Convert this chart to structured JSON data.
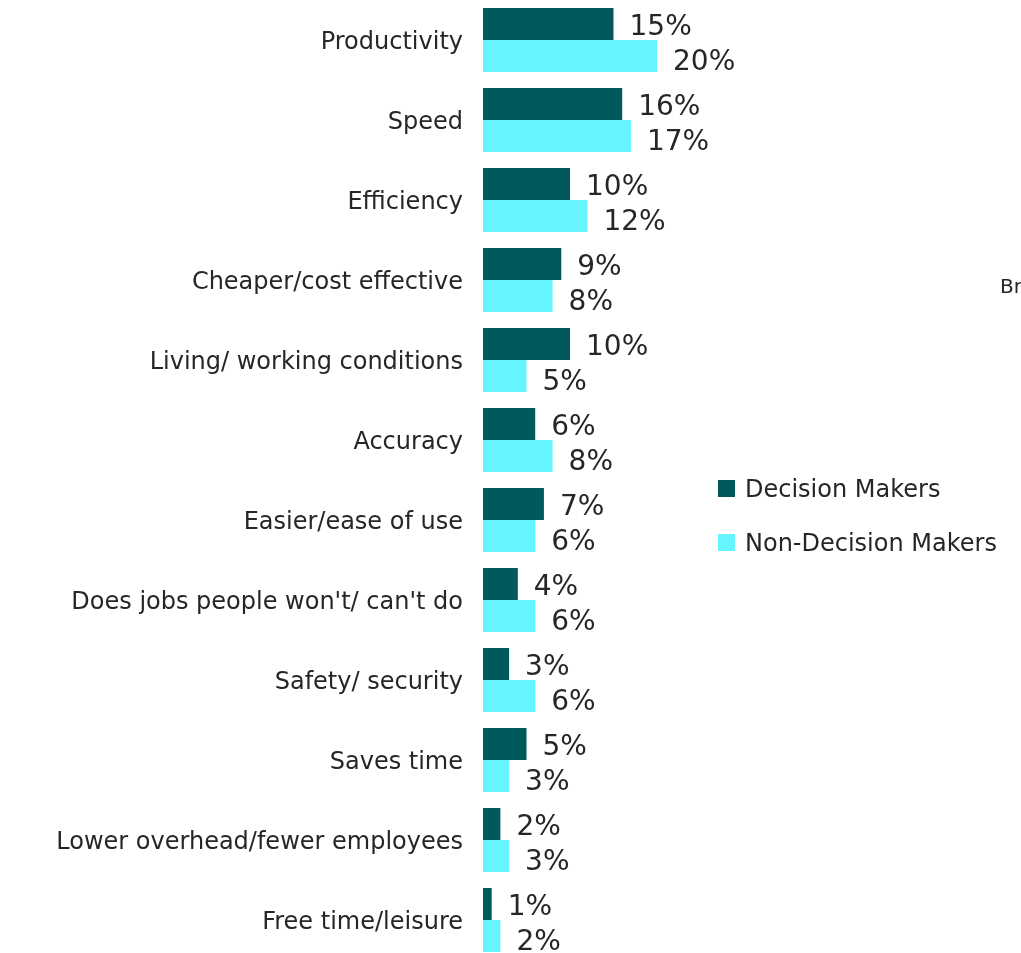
{
  "chart_data": {
    "type": "bar",
    "orientation": "horizontal",
    "categories": [
      "Productivity",
      "Speed",
      "Efficiency",
      "Cheaper/cost effective",
      "Living/ working conditions",
      "Accuracy",
      "Easier/ease of use",
      "Does jobs people won't/ can't do",
      "Safety/ security",
      "Saves time",
      "Lower overhead/fewer employees",
      "Free time/leisure"
    ],
    "series": [
      {
        "name": "Decision Makers",
        "color": "#005a5b",
        "values": [
          15,
          16,
          10,
          9,
          10,
          6,
          7,
          4,
          3,
          5,
          2,
          1
        ],
        "value_labels": [
          "15%",
          "16%",
          "10%",
          "9%",
          "10%",
          "6%",
          "7%",
          "4%",
          "3%",
          "5%",
          "2%",
          "1%"
        ]
      },
      {
        "name": "Non-Decision Makers",
        "color": "#66f4ff",
        "values": [
          20,
          17,
          12,
          8,
          5,
          8,
          6,
          6,
          6,
          3,
          3,
          2
        ],
        "value_labels": [
          "20%",
          "17%",
          "12%",
          "8%",
          "5%",
          "8%",
          "6%",
          "6%",
          "6%",
          "3%",
          "3%",
          "2%"
        ]
      }
    ],
    "legend": "right",
    "annotations": [
      "Br"
    ]
  }
}
